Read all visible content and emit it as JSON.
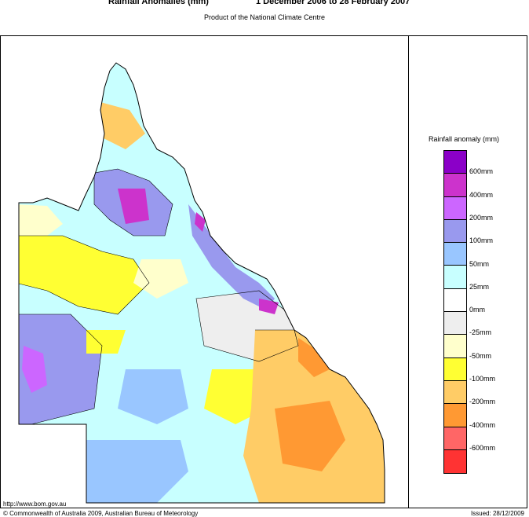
{
  "header": {
    "title": "Rainfall Anomalies (mm)",
    "period": "1 December 2006 to 28 February 2007",
    "subtitle": "Product of the National Climate Centre"
  },
  "legend": {
    "title": "Rainfall anomaly (mm)",
    "swatches": [
      {
        "color": "#8b00c8"
      },
      {
        "color": "#cc33cc"
      },
      {
        "color": "#cc66ff"
      },
      {
        "color": "#9999ee"
      },
      {
        "color": "#99c6ff"
      },
      {
        "color": "#c8ffff"
      },
      {
        "color": "#ffffff"
      },
      {
        "color": "#eeeeee"
      },
      {
        "color": "#ffffcc"
      },
      {
        "color": "#ffff33"
      },
      {
        "color": "#ffcc66"
      },
      {
        "color": "#ff9933"
      },
      {
        "color": "#ff6666"
      },
      {
        "color": "#ff3333"
      }
    ],
    "labels": [
      "600mm",
      "400mm",
      "200mm",
      "100mm",
      "50mm",
      "25mm",
      "0mm",
      "-25mm",
      "-50mm",
      "-100mm",
      "-200mm",
      "-400mm",
      "-600mm"
    ]
  },
  "footer": {
    "url": "http://www.bom.gov.au",
    "copyright": "© Commonwealth of Australia 2009, Australian Bureau of Meteorology",
    "issued": "Issued: 28/12/2009"
  }
}
